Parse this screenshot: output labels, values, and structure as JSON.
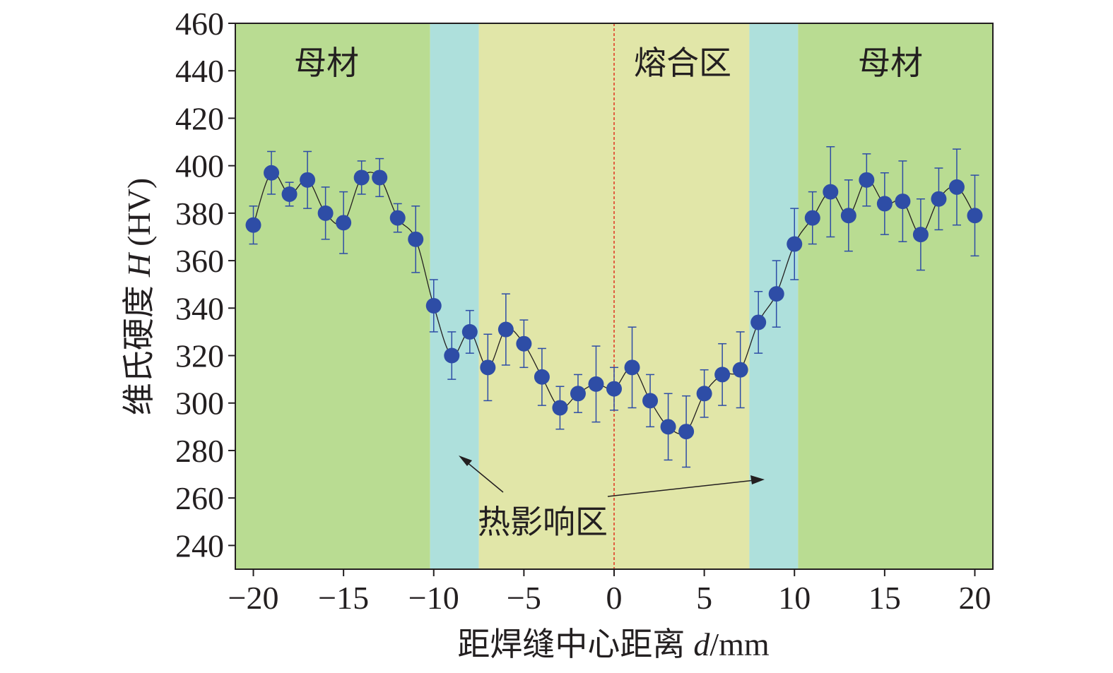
{
  "chart_data": {
    "type": "scatter",
    "title": "",
    "xlabel": {
      "prefix": "距焊缝中心距离",
      "var": "d",
      "unit": "/mm"
    },
    "ylabel": {
      "prefix": "维氏硬度",
      "var": "H",
      "unit": "(HV)"
    },
    "xlim": [
      -21,
      21
    ],
    "ylim": [
      230,
      460
    ],
    "xticks": [
      -20,
      -15,
      -10,
      -5,
      0,
      5,
      10,
      15,
      20
    ],
    "xtick_labels": [
      "−20",
      "−15",
      "−10",
      "−5",
      "0",
      "5",
      "10",
      "15",
      "20"
    ],
    "yticks": [
      240,
      260,
      280,
      300,
      320,
      340,
      360,
      380,
      400,
      420,
      440,
      460
    ],
    "ytick_labels": [
      "240",
      "260",
      "280",
      "300",
      "320",
      "340",
      "360",
      "380",
      "400",
      "420",
      "440",
      "460"
    ],
    "zones": [
      {
        "name": "base-left",
        "from": -21,
        "to": -10.2,
        "color": "#b9dc92"
      },
      {
        "name": "haz-left",
        "from": -10.2,
        "to": -7.5,
        "color": "#aee0dc"
      },
      {
        "name": "fusion",
        "from": -7.5,
        "to": 7.5,
        "color": "#e1e6a8"
      },
      {
        "name": "haz-right",
        "from": 7.5,
        "to": 10.2,
        "color": "#aee0dc"
      },
      {
        "name": "base-right",
        "from": 10.2,
        "to": 21,
        "color": "#b9dc92"
      }
    ],
    "zone_labels": {
      "base_left": "母材",
      "fusion": "熔合区",
      "base_right": "母材",
      "haz": "热影响区"
    },
    "center_line": {
      "x": 0,
      "color": "#e0301e"
    },
    "marker_color": "#2e4da6",
    "line_color": "#231f20",
    "x": [
      -20,
      -19,
      -18,
      -17,
      -16,
      -15,
      -14,
      -13,
      -12,
      -11,
      -10,
      -9,
      -8,
      -7,
      -6,
      -5,
      -4,
      -3,
      -2,
      -1,
      0,
      1,
      2,
      3,
      4,
      5,
      6,
      7,
      8,
      9,
      10,
      11,
      12,
      13,
      14,
      15,
      16,
      17,
      18,
      19,
      20
    ],
    "y": [
      375,
      397,
      388,
      394,
      380,
      376,
      395,
      395,
      378,
      369,
      341,
      320,
      330,
      315,
      331,
      325,
      311,
      298,
      304,
      308,
      306,
      315,
      301,
      290,
      288,
      304,
      312,
      314,
      334,
      346,
      367,
      378,
      389,
      379,
      394,
      384,
      385,
      371,
      386,
      391,
      379
    ],
    "yerr": [
      8,
      9,
      5,
      12,
      11,
      13,
      7,
      8,
      6,
      14,
      11,
      10,
      9,
      14,
      15,
      10,
      12,
      9,
      8,
      16,
      9,
      17,
      11,
      14,
      15,
      10,
      13,
      16,
      13,
      14,
      15,
      11,
      19,
      15,
      11,
      13,
      17,
      15,
      13,
      16,
      17
    ]
  }
}
